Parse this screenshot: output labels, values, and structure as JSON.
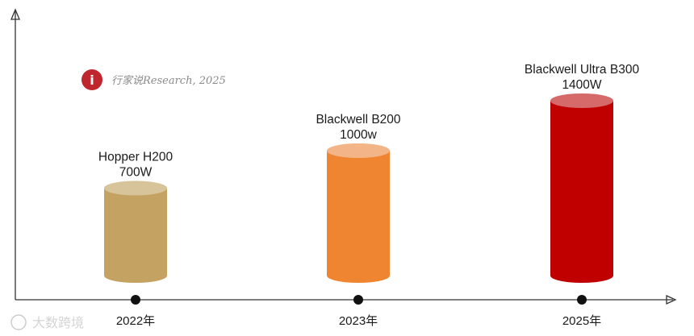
{
  "watermark": {
    "text": "行家说Research, 2025",
    "logo_text": "i",
    "logo_color": "#c0262d"
  },
  "corner_watermark": {
    "text": "大数跨境"
  },
  "chart_data": {
    "type": "bar",
    "title": "",
    "xlabel": "",
    "ylabel": "",
    "categories": [
      "2022年",
      "2023年",
      "2025年"
    ],
    "series": [
      {
        "values": [
          700,
          1000,
          1400
        ]
      }
    ],
    "bar_labels": [
      {
        "name": "Hopper  H200",
        "value_text": "700W"
      },
      {
        "name": "Blackwell B200",
        "value_text": "1000w"
      },
      {
        "name": "Blackwell Ultra B300",
        "value_text": "1400W"
      }
    ],
    "colors": {
      "bars": [
        "#c4a262",
        "#ef8531",
        "#c00000"
      ],
      "tops": [
        "#d8c49a",
        "#f3b487",
        "#d66a6a"
      ],
      "axis": "#333333"
    },
    "ylim": [
      0,
      1600
    ],
    "grid": false,
    "legend": "none"
  }
}
